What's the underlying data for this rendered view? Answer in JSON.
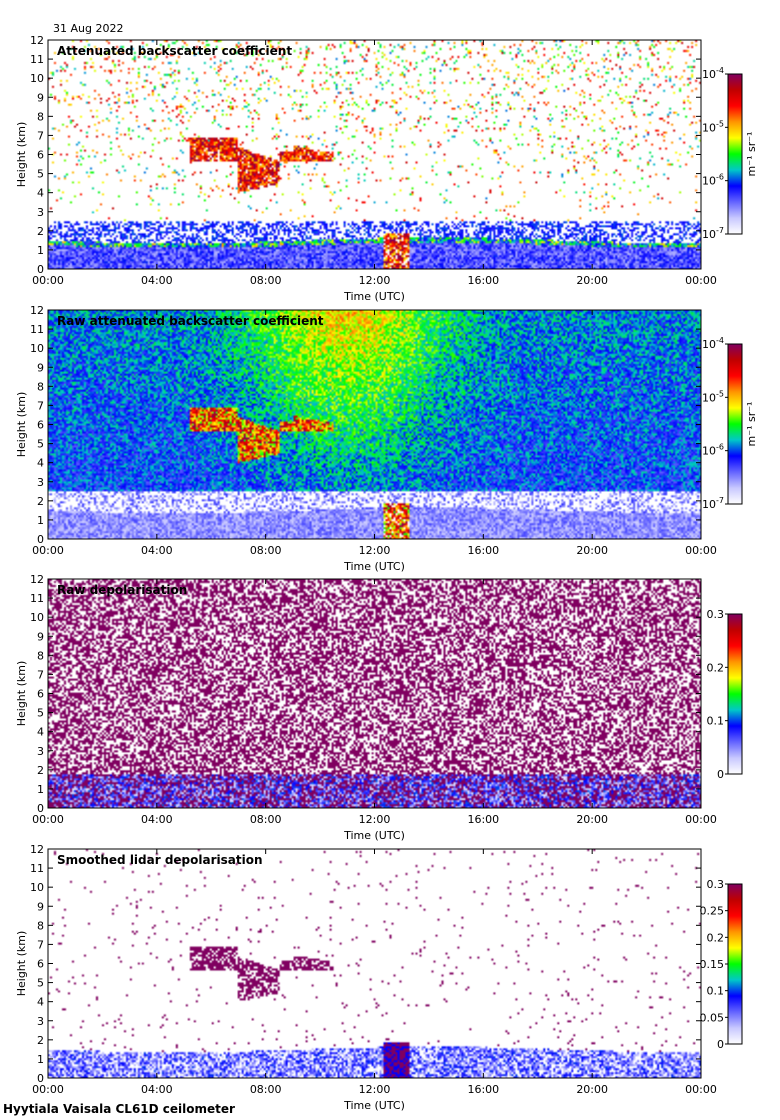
{
  "date_label": "31 Aug 2022",
  "footer": "Hyytiala Vaisala CL61D ceilometer",
  "colors": {
    "frame": "#000000",
    "colormap": [
      "#ffffff",
      "#c8c8ff",
      "#6464ff",
      "#0000ff",
      "#00c8c8",
      "#00ff00",
      "#ffff00",
      "#ff9600",
      "#ff0000",
      "#c00000",
      "#800060"
    ]
  },
  "chart_data": [
    {
      "type": "heatmap",
      "title": "Attenuated backscatter coefficient",
      "xlabel": "Time (UTC)",
      "ylabel": "Height (km)",
      "xticks": [
        "00:00",
        "04:00",
        "08:00",
        "12:00",
        "16:00",
        "20:00",
        "00:00"
      ],
      "yticks": [
        "0",
        "1",
        "2",
        "3",
        "4",
        "5",
        "6",
        "7",
        "8",
        "9",
        "10",
        "11",
        "12"
      ],
      "ylim": [
        0,
        12
      ],
      "xlim_hours": [
        0,
        24
      ],
      "colorbar": {
        "scale": "log",
        "ticks": [
          {
            "base": "10",
            "exp": "-4"
          },
          {
            "base": "10",
            "exp": "-5"
          },
          {
            "base": "10",
            "exp": "-6"
          },
          {
            "base": "10",
            "exp": "-7"
          }
        ],
        "label": "m⁻¹ sr⁻¹"
      },
      "features": [
        {
          "name": "boundary layer",
          "from_h": 0,
          "to_h": 24,
          "top_km": 1.5
        },
        {
          "name": "mid-level cloud",
          "from_h": 5.2,
          "to_h": 10.5,
          "base_km": 4.0,
          "top_km": 6.8
        },
        {
          "name": "convective cloud",
          "from_h": 12.3,
          "to_h": 13.3,
          "base_km": 0,
          "top_km": 1.8
        }
      ]
    },
    {
      "type": "heatmap",
      "title": "Raw attenuated backscatter coefficient",
      "xlabel": "Time (UTC)",
      "ylabel": "Height (km)",
      "xticks": [
        "00:00",
        "04:00",
        "08:00",
        "12:00",
        "16:00",
        "20:00",
        "00:00"
      ],
      "yticks": [
        "0",
        "1",
        "2",
        "3",
        "4",
        "5",
        "6",
        "7",
        "8",
        "9",
        "10",
        "11",
        "12"
      ],
      "ylim": [
        0,
        12
      ],
      "xlim_hours": [
        0,
        24
      ],
      "colorbar": {
        "scale": "log",
        "ticks": [
          {
            "base": "10",
            "exp": "-4"
          },
          {
            "base": "10",
            "exp": "-5"
          },
          {
            "base": "10",
            "exp": "-6"
          },
          {
            "base": "10",
            "exp": "-7"
          }
        ],
        "label": "m⁻¹ sr⁻¹"
      }
    },
    {
      "type": "heatmap",
      "title": "Raw depolarisation",
      "xlabel": "Time (UTC)",
      "ylabel": "Height (km)",
      "xticks": [
        "00:00",
        "04:00",
        "08:00",
        "12:00",
        "16:00",
        "20:00",
        "00:00"
      ],
      "yticks": [
        "0",
        "1",
        "2",
        "3",
        "4",
        "5",
        "6",
        "7",
        "8",
        "9",
        "10",
        "11",
        "12"
      ],
      "ylim": [
        0,
        12
      ],
      "xlim_hours": [
        0,
        24
      ],
      "colorbar": {
        "scale": "linear",
        "range": [
          0,
          0.3
        ],
        "ticks": [
          "0.3",
          "0.2",
          "0.1",
          "0"
        ]
      }
    },
    {
      "type": "heatmap",
      "title": "Smoothed lidar depolarisation",
      "xlabel": "Time (UTC)",
      "ylabel": "Height (km)",
      "xticks": [
        "00:00",
        "04:00",
        "08:00",
        "12:00",
        "16:00",
        "20:00",
        "00:00"
      ],
      "yticks": [
        "0",
        "1",
        "2",
        "3",
        "4",
        "5",
        "6",
        "7",
        "8",
        "9",
        "10",
        "11",
        "12"
      ],
      "ylim": [
        0,
        12
      ],
      "xlim_hours": [
        0,
        24
      ],
      "colorbar": {
        "scale": "linear",
        "range": [
          0,
          0.3
        ],
        "ticks": [
          "0.3",
          "0.25",
          "0.2",
          "0.15",
          "0.1",
          "0.05",
          "0"
        ]
      }
    }
  ]
}
